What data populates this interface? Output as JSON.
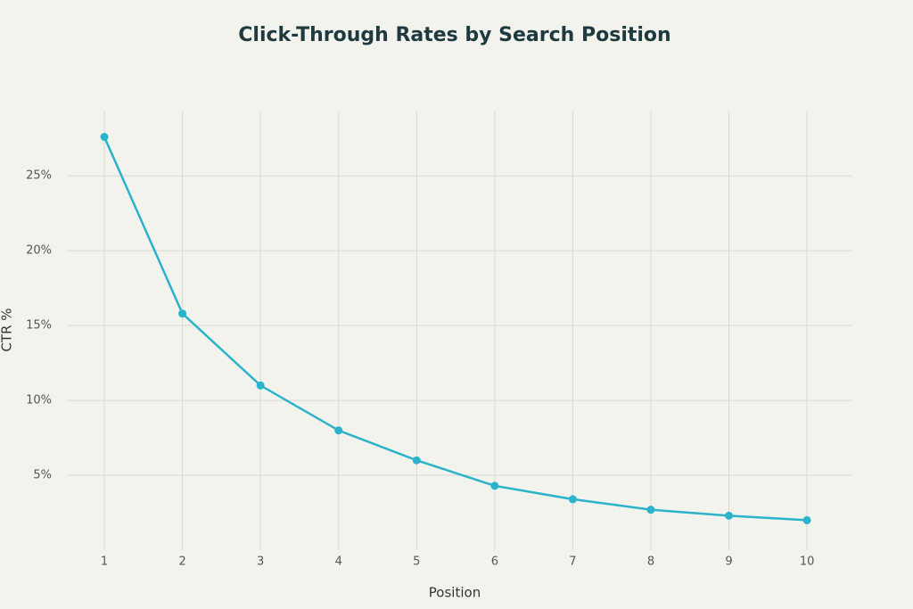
{
  "chart_data": {
    "type": "line",
    "title": "Click-Through Rates by Search Position",
    "x_label": "Position",
    "y_label": "CTR %",
    "x": [
      1,
      2,
      3,
      4,
      5,
      6,
      7,
      8,
      9,
      10
    ],
    "series": [
      {
        "name": "CTR",
        "color": "#2bb3cb",
        "values": [
          27.6,
          15.8,
          11.0,
          8.0,
          6.0,
          4.3,
          3.4,
          2.7,
          2.3,
          2.0
        ]
      }
    ],
    "xlim": [
      0.52,
      10.57
    ],
    "xticks": [
      1,
      2,
      3,
      4,
      5,
      6,
      7,
      8,
      9,
      10
    ],
    "ylim": [
      0,
      29.3
    ],
    "yticks": [
      {
        "value": 5,
        "label": "5%"
      },
      {
        "value": 10,
        "label": "10%"
      },
      {
        "value": 15,
        "label": "15%"
      },
      {
        "value": 20,
        "label": "20%"
      },
      {
        "value": 25,
        "label": "25%"
      }
    ],
    "grid": true
  }
}
